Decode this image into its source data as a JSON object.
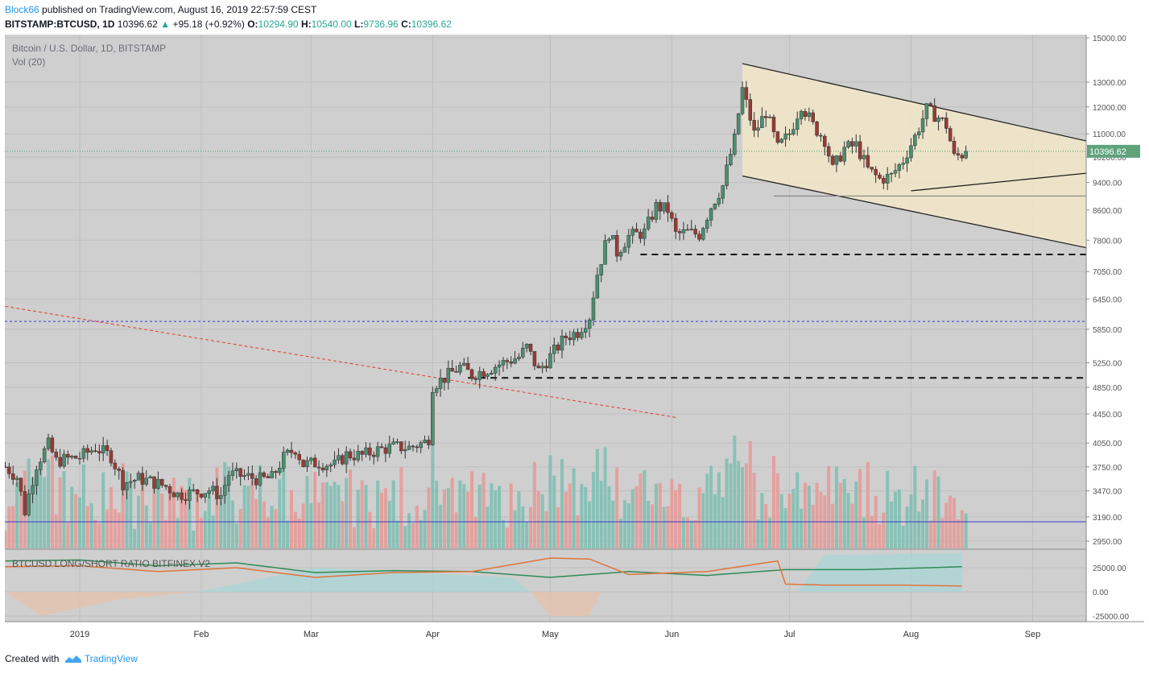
{
  "header": {
    "user": "Block66",
    "published_text": "published on TradingView.com, August 16, 2019 22:57:59 CEST",
    "symbol": "BITSTAMP:BTCUSD, 1D",
    "last": "10396.62",
    "change": "+95.18 (+0.92%)",
    "o_label": "O:",
    "open": "10294.90",
    "h_label": "H:",
    "high": "10540.00",
    "l_label": "L:",
    "low": "9736.96",
    "c_label": "C:",
    "close": "10396.62"
  },
  "footer": {
    "created_with": "Created with",
    "brand": "TradingView"
  },
  "chart_data": {
    "type": "candlestick",
    "title": "Bitcoin / U.S. Dollar, 1D, BITSTAMP",
    "volume_label": "Vol (20)",
    "indicator_label": "BTCUSD LONG/SHORT RATIO BITFINEX V2",
    "price_label": "10396.62",
    "price_ticks": [
      15000,
      13000,
      12000,
      11000,
      10200,
      9400,
      8600,
      7800,
      7050,
      6450,
      5850,
      5250,
      4850,
      4450,
      4050,
      3750,
      3470,
      3190,
      2950
    ],
    "price_tick_labels": [
      "15000.00",
      "13000.00",
      "12000.00",
      "11000.00",
      "10200.00",
      "9400.00",
      "8600.00",
      "7800.00",
      "7050.00",
      "6450.00",
      "5850.00",
      "5250.00",
      "4850.00",
      "4450.00",
      "4050.00",
      "3750.00",
      "3470.00",
      "3190.00",
      "2950.00"
    ],
    "indicator_ticks": [
      25000,
      0,
      -25000
    ],
    "indicator_tick_labels": [
      "25000.00",
      "0.00",
      "-25000.00"
    ],
    "x_tick_labels": [
      "2019",
      "Feb",
      "Mar",
      "Apr",
      "May",
      "Jun",
      "Jul",
      "Aug",
      "Sep"
    ],
    "x_tick_days": [
      0,
      31,
      59,
      90,
      120,
      151,
      181,
      212,
      243
    ],
    "ohlc_anchor_closes": [
      [
        -19,
        3750
      ],
      [
        -16,
        3630
      ],
      [
        -14,
        3250
      ],
      [
        -11,
        3780
      ],
      [
        -8,
        4030
      ],
      [
        -6,
        3820
      ],
      [
        -3,
        3850
      ],
      [
        0,
        3870
      ],
      [
        4,
        3990
      ],
      [
        8,
        3880
      ],
      [
        11,
        3560
      ],
      [
        15,
        3610
      ],
      [
        18,
        3580
      ],
      [
        22,
        3520
      ],
      [
        25,
        3430
      ],
      [
        29,
        3450
      ],
      [
        33,
        3480
      ],
      [
        36,
        3420
      ],
      [
        38,
        3660
      ],
      [
        42,
        3640
      ],
      [
        46,
        3600
      ],
      [
        49,
        3620
      ],
      [
        52,
        3860
      ],
      [
        55,
        3980
      ],
      [
        57,
        3780
      ],
      [
        61,
        3800
      ],
      [
        65,
        3770
      ],
      [
        68,
        3900
      ],
      [
        72,
        3890
      ],
      [
        76,
        3960
      ],
      [
        80,
        4000
      ],
      [
        84,
        3990
      ],
      [
        88,
        4060
      ],
      [
        89,
        4120
      ],
      [
        90,
        4880
      ],
      [
        93,
        5000
      ],
      [
        97,
        5180
      ],
      [
        100,
        5050
      ],
      [
        104,
        5140
      ],
      [
        108,
        5250
      ],
      [
        112,
        5350
      ],
      [
        114,
        5520
      ],
      [
        117,
        5110
      ],
      [
        120,
        5360
      ],
      [
        124,
        5710
      ],
      [
        127,
        5800
      ],
      [
        130,
        6100
      ],
      [
        132,
        7000
      ],
      [
        135,
        8000
      ],
      [
        137,
        7500
      ],
      [
        140,
        7900
      ],
      [
        144,
        8000
      ],
      [
        147,
        8700
      ],
      [
        150,
        8600
      ],
      [
        152,
        7950
      ],
      [
        155,
        8000
      ],
      [
        158,
        7950
      ],
      [
        161,
        8700
      ],
      [
        164,
        9300
      ],
      [
        167,
        10800
      ],
      [
        169,
        12700
      ],
      [
        172,
        11000
      ],
      [
        175,
        11800
      ],
      [
        178,
        10500
      ],
      [
        181,
        11000
      ],
      [
        184,
        12100
      ],
      [
        187,
        11300
      ],
      [
        190,
        10800
      ],
      [
        192,
        9800
      ],
      [
        195,
        10500
      ],
      [
        198,
        10600
      ],
      [
        201,
        9800
      ],
      [
        204,
        9500
      ],
      [
        207,
        9600
      ],
      [
        210,
        10100
      ],
      [
        213,
        10900
      ],
      [
        216,
        11900
      ],
      [
        219,
        11600
      ],
      [
        221,
        11300
      ],
      [
        223,
        10200
      ],
      [
        225,
        10296
      ],
      [
        226,
        10396.62
      ]
    ],
    "support_lines": [
      {
        "style": "dashed",
        "price": 7450,
        "from_day": 143,
        "to_day": 270
      },
      {
        "style": "dashed",
        "price": 5000,
        "from_day": 99,
        "to_day": 270
      },
      {
        "style": "solid_thin",
        "price": 9000,
        "from_day": 177,
        "to_day": 270
      }
    ],
    "blue_dotted_level": 6000,
    "channel": {
      "upper": [
        [
          169,
          13800
        ],
        [
          270,
          10350
        ]
      ],
      "lower": [
        [
          169,
          9600
        ],
        [
          270,
          7350
        ]
      ],
      "inner_support": [
        [
          212,
          9150
        ],
        [
          270,
          9850
        ]
      ]
    },
    "red_trendline": [
      [
        -19,
        6300
      ],
      [
        152,
        4400
      ]
    ],
    "ratio_series": {
      "green": [
        [
          -19,
          32000
        ],
        [
          0,
          33000
        ],
        [
          20,
          27000
        ],
        [
          40,
          30000
        ],
        [
          60,
          20000
        ],
        [
          80,
          22000
        ],
        [
          100,
          21000
        ],
        [
          120,
          15000
        ],
        [
          140,
          21000
        ],
        [
          160,
          17000
        ],
        [
          180,
          23000
        ],
        [
          200,
          23000
        ],
        [
          225,
          26000
        ]
      ],
      "orange": [
        [
          -19,
          26000
        ],
        [
          0,
          27000
        ],
        [
          20,
          21000
        ],
        [
          40,
          25000
        ],
        [
          60,
          15000
        ],
        [
          80,
          20000
        ],
        [
          100,
          21000
        ],
        [
          120,
          35000
        ],
        [
          130,
          34000
        ],
        [
          140,
          18000
        ],
        [
          160,
          21000
        ],
        [
          178,
          32000
        ],
        [
          180,
          8000
        ],
        [
          190,
          7000
        ],
        [
          210,
          7000
        ],
        [
          225,
          6000
        ]
      ]
    }
  }
}
